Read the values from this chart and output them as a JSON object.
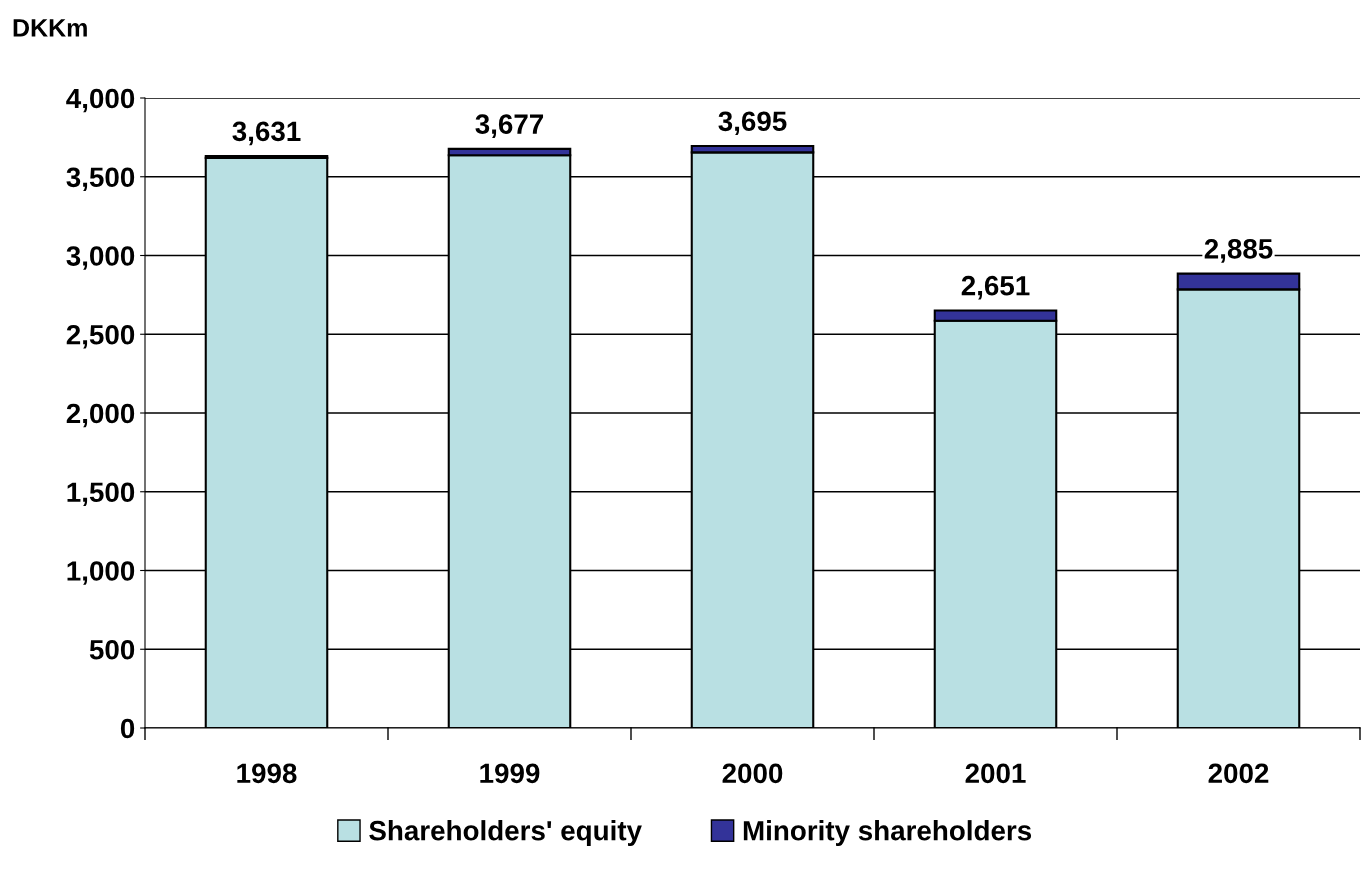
{
  "chart_data": {
    "type": "bar",
    "stacked": true,
    "ylabel": "DKKm",
    "categories": [
      "1998",
      "1999",
      "2000",
      "2001",
      "2002"
    ],
    "series": [
      {
        "name": "Shareholders' equity",
        "color": "#b9e0e3",
        "values": [
          3620,
          3637,
          3655,
          2586,
          2785
        ]
      },
      {
        "name": "Minority shareholders",
        "color": "#333399",
        "values": [
          11,
          40,
          40,
          65,
          100
        ]
      }
    ],
    "totals": [
      "3,631",
      "3,677",
      "3,695",
      "2,651",
      "2,885"
    ],
    "ylim": [
      0,
      4000
    ],
    "yticks": [
      {
        "value": 0,
        "label": "0"
      },
      {
        "value": 500,
        "label": "500"
      },
      {
        "value": 1000,
        "label": "1,000"
      },
      {
        "value": 1500,
        "label": "1,500"
      },
      {
        "value": 2000,
        "label": "2,000"
      },
      {
        "value": 2500,
        "label": "2,500"
      },
      {
        "value": 3000,
        "label": "3,000"
      },
      {
        "value": 3500,
        "label": "3,500"
      },
      {
        "value": 4000,
        "label": "4,000"
      }
    ],
    "grid": "y",
    "legend": "bottom"
  }
}
